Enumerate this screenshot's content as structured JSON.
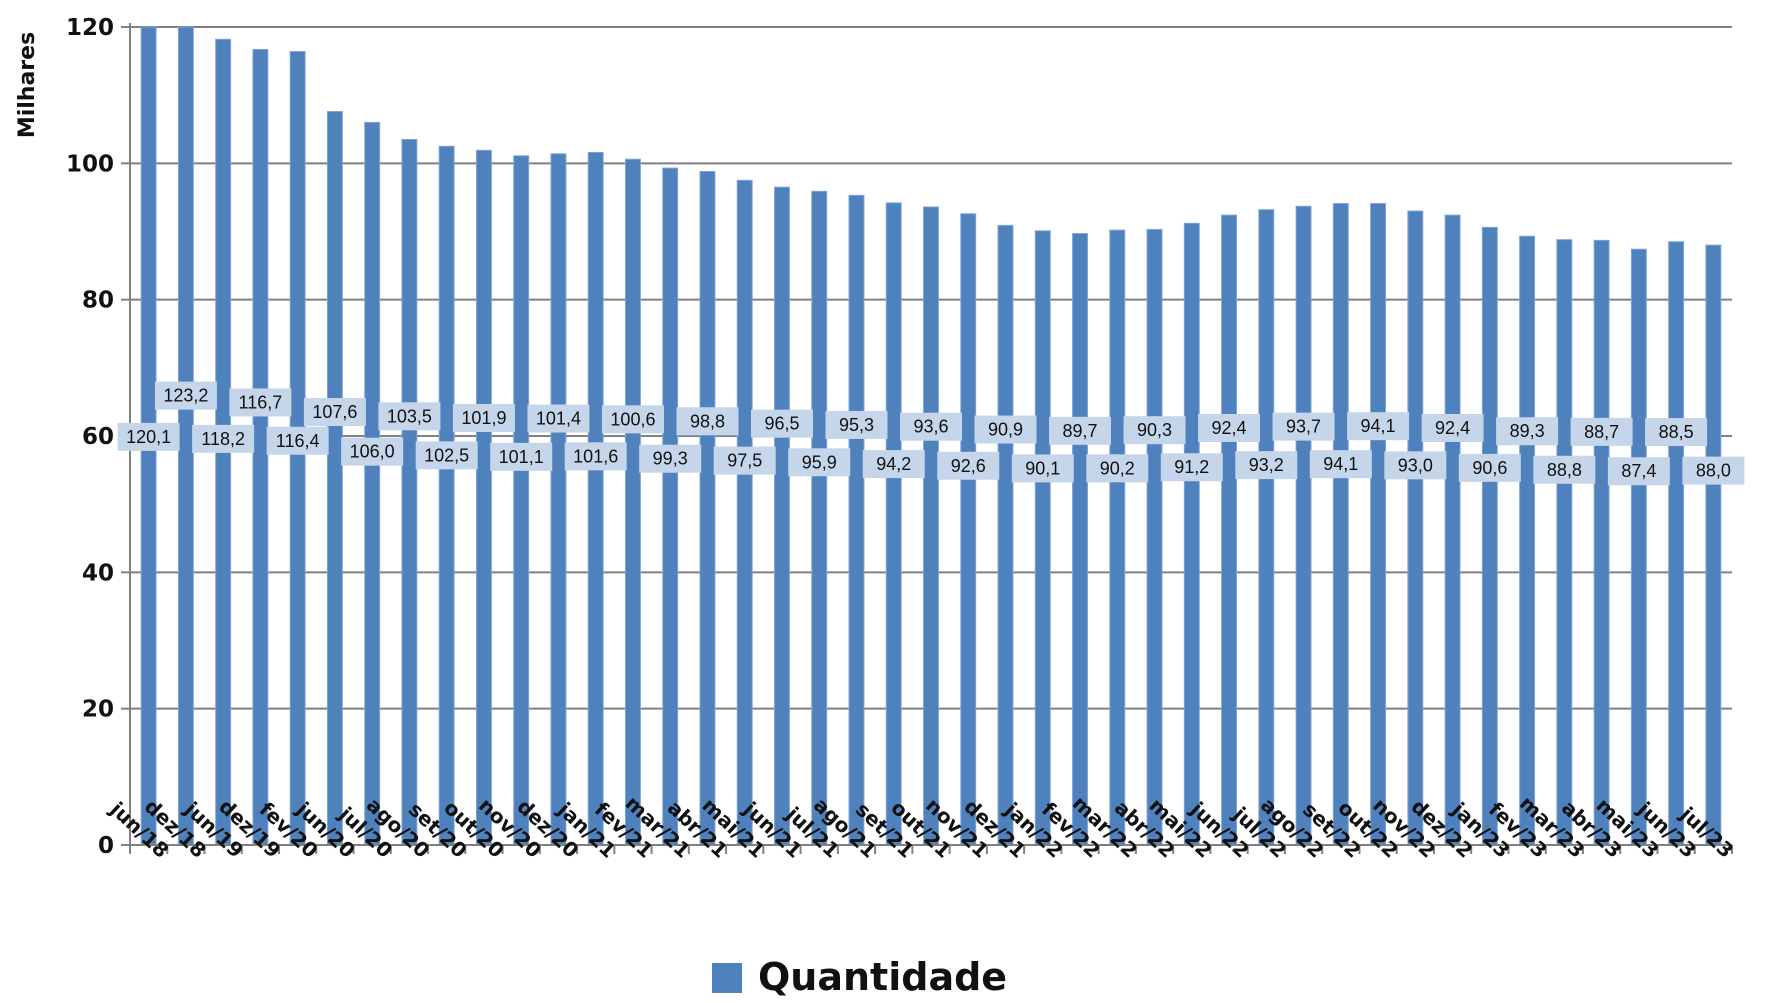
{
  "chart_data": {
    "type": "bar",
    "ylabel": "Milhares",
    "ylim": [
      0,
      120
    ],
    "yticks": [
      0,
      20,
      40,
      60,
      80,
      100,
      120
    ],
    "grid": true,
    "legend_position": "bottom-center",
    "categories": [
      "jun/18",
      "dez/18",
      "jun/19",
      "dez/19",
      "fev/20",
      "jun/20",
      "jul/20",
      "ago/20",
      "set/20",
      "out/20",
      "nov/20",
      "dez/20",
      "jan/21",
      "fev/21",
      "mar/21",
      "abr/21",
      "mai/21",
      "jun/21",
      "jul/21",
      "ago/21",
      "set/21",
      "out/21",
      "nov/21",
      "dez/21",
      "jan/22",
      "fev/22",
      "mar/22",
      "abr/22",
      "mai/22",
      "jun/22",
      "jul/22",
      "ago/22",
      "set/22",
      "out/22",
      "nov/22",
      "dez/22",
      "jan/23",
      "fev/23",
      "mar/23",
      "abr/23",
      "mai/23",
      "jun/23",
      "jul/23"
    ],
    "series": [
      {
        "name": "Quantidade",
        "color": "#4f81bd",
        "values": [
          120.1,
          123.2,
          118.2,
          116.7,
          116.4,
          107.6,
          106.0,
          103.5,
          102.5,
          101.9,
          101.1,
          101.4,
          101.6,
          100.6,
          99.3,
          98.8,
          97.5,
          96.5,
          95.9,
          95.3,
          94.2,
          93.6,
          92.6,
          90.9,
          90.1,
          89.7,
          90.2,
          90.3,
          91.2,
          92.4,
          93.2,
          93.7,
          94.1,
          94.1,
          93.0,
          92.4,
          90.6,
          89.3,
          88.8,
          88.7,
          87.4,
          88.5,
          88.0
        ],
        "labels": [
          "120,1",
          "123,2",
          "118,2",
          "116,7",
          "116,4",
          "107,6",
          "106,0",
          "103,5",
          "102,5",
          "101,9",
          "101,1",
          "101,4",
          "101,6",
          "100,6",
          "99,3",
          "98,8",
          "97,5",
          "96,5",
          "95,9",
          "95,3",
          "94,2",
          "93,6",
          "92,6",
          "90,9",
          "90,1",
          "89,7",
          "90,2",
          "90,3",
          "91,2",
          "92,4",
          "93,2",
          "93,7",
          "94,1",
          "94,1",
          "93,0",
          "92,4",
          "90,6",
          "89,3",
          "88,8",
          "88,7",
          "87,4",
          "88,5",
          "88,0"
        ]
      }
    ]
  },
  "colors": {
    "bar": "#4f81bd",
    "bar_edge": "#7da3d6",
    "label_box": "#c6d6ea",
    "grid": "#808080",
    "axis": "#808080"
  }
}
